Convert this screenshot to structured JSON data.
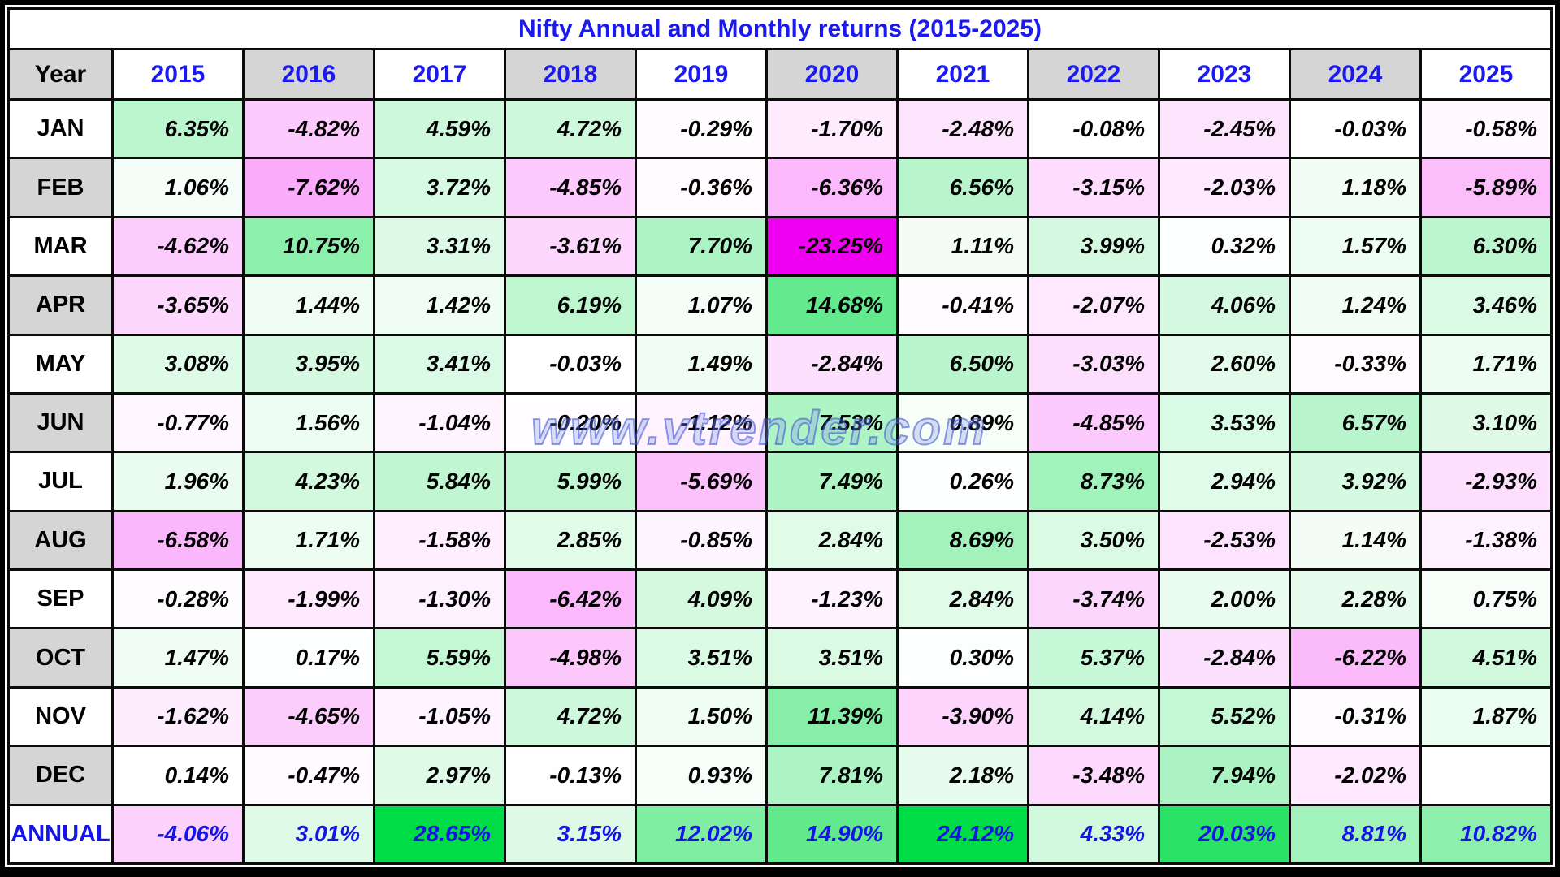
{
  "title": "Nifty Annual and Monthly returns (2015-2025)",
  "watermark": "www.vtrender.com",
  "colors": {
    "title_text": "#1a1af0",
    "year_header_text": "#1a1af0",
    "annual_text": "#1414e6",
    "value_text": "#000000",
    "gray_cell": "#d5d5d5",
    "positive_max_color": "#00dc46",
    "negative_max_color": "#f000f0",
    "positive_scale_max": 24,
    "negative_scale_max": 23.25
  },
  "chart_data": {
    "type": "heatmap",
    "title": "Nifty Annual and Monthly returns (2015-2025)",
    "corner_label": "Year",
    "categories": [
      "2015",
      "2016",
      "2017",
      "2018",
      "2019",
      "2020",
      "2021",
      "2022",
      "2023",
      "2024",
      "2025"
    ],
    "value_format": "percent_2dp",
    "rows": [
      {
        "label": "JAN",
        "values": [
          6.35,
          -4.82,
          4.59,
          4.72,
          -0.29,
          -1.7,
          -2.48,
          -0.08,
          -2.45,
          -0.03,
          -0.58
        ]
      },
      {
        "label": "FEB",
        "values": [
          1.06,
          -7.62,
          3.72,
          -4.85,
          -0.36,
          -6.36,
          6.56,
          -3.15,
          -2.03,
          1.18,
          -5.89
        ]
      },
      {
        "label": "MAR",
        "values": [
          -4.62,
          10.75,
          3.31,
          -3.61,
          7.7,
          -23.25,
          1.11,
          3.99,
          0.32,
          1.57,
          6.3
        ]
      },
      {
        "label": "APR",
        "values": [
          -3.65,
          1.44,
          1.42,
          6.19,
          1.07,
          14.68,
          -0.41,
          -2.07,
          4.06,
          1.24,
          3.46
        ]
      },
      {
        "label": "MAY",
        "values": [
          3.08,
          3.95,
          3.41,
          -0.03,
          1.49,
          -2.84,
          6.5,
          -3.03,
          2.6,
          -0.33,
          1.71
        ]
      },
      {
        "label": "JUN",
        "values": [
          -0.77,
          1.56,
          -1.04,
          -0.2,
          -1.12,
          7.53,
          0.89,
          -4.85,
          3.53,
          6.57,
          3.1
        ]
      },
      {
        "label": "JUL",
        "values": [
          1.96,
          4.23,
          5.84,
          5.99,
          -5.69,
          7.49,
          0.26,
          8.73,
          2.94,
          3.92,
          -2.93
        ]
      },
      {
        "label": "AUG",
        "values": [
          -6.58,
          1.71,
          -1.58,
          2.85,
          -0.85,
          2.84,
          8.69,
          3.5,
          -2.53,
          1.14,
          -1.38
        ]
      },
      {
        "label": "SEP",
        "values": [
          -0.28,
          -1.99,
          -1.3,
          -6.42,
          4.09,
          -1.23,
          2.84,
          -3.74,
          2.0,
          2.28,
          0.75
        ]
      },
      {
        "label": "OCT",
        "values": [
          1.47,
          0.17,
          5.59,
          -4.98,
          3.51,
          3.51,
          0.3,
          5.37,
          -2.84,
          -6.22,
          4.51
        ]
      },
      {
        "label": "NOV",
        "values": [
          -1.62,
          -4.65,
          -1.05,
          4.72,
          1.5,
          11.39,
          -3.9,
          4.14,
          5.52,
          -0.31,
          1.87
        ]
      },
      {
        "label": "DEC",
        "values": [
          0.14,
          -0.47,
          2.97,
          -0.13,
          0.93,
          7.81,
          2.18,
          -3.48,
          7.94,
          -2.02,
          null
        ]
      },
      {
        "label": "ANNUAL",
        "values": [
          -4.06,
          3.01,
          28.65,
          3.15,
          12.02,
          14.9,
          24.12,
          4.33,
          20.03,
          8.81,
          10.82
        ]
      }
    ]
  }
}
